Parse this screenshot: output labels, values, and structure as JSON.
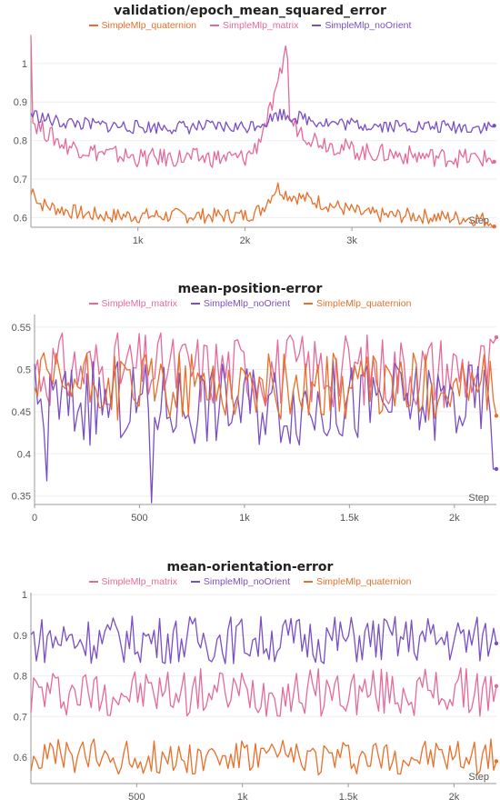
{
  "colors": {
    "SimpleMlp_quaternion": "#e8702a",
    "SimpleMlp_matrix": "#e56a9c",
    "SimpleMlp_noOrient": "#7b4fc4"
  },
  "chart_data": [
    {
      "type": "line",
      "title": "validation/epoch_mean_squared_error",
      "xlabel": "Step",
      "legend": [
        "SimpleMlp_quaternion",
        "SimpleMlp_matrix",
        "SimpleMlp_noOrient"
      ],
      "xlim": [
        0,
        4350
      ],
      "ylim": [
        0.575,
        1.075
      ],
      "xticks": [
        {
          "v": 1000,
          "label": "1k"
        },
        {
          "v": 2000,
          "label": "2k"
        },
        {
          "v": 3000,
          "label": "3k"
        }
      ],
      "yticks": [
        {
          "v": 0.6,
          "label": "0.6"
        },
        {
          "v": 0.7,
          "label": "0.7"
        },
        {
          "v": 0.8,
          "label": "0.8"
        },
        {
          "v": 0.9,
          "label": "0.9"
        },
        {
          "v": 1.0,
          "label": "1"
        }
      ],
      "series": [
        {
          "name": "SimpleMlp_quaternion",
          "points": [
            [
              0,
              0.66
            ],
            [
              30,
              0.68
            ],
            [
              60,
              0.64
            ],
            [
              150,
              0.63
            ],
            [
              300,
              0.62
            ],
            [
              500,
              0.61
            ],
            [
              700,
              0.605
            ],
            [
              1000,
              0.605
            ],
            [
              1500,
              0.605
            ],
            [
              2000,
              0.605
            ],
            [
              2150,
              0.62
            ],
            [
              2300,
              0.68
            ],
            [
              2400,
              0.66
            ],
            [
              2700,
              0.64
            ],
            [
              2900,
              0.625
            ],
            [
              3100,
              0.61
            ],
            [
              3300,
              0.605
            ],
            [
              3600,
              0.605
            ],
            [
              3900,
              0.6
            ],
            [
              4200,
              0.598
            ],
            [
              4330,
              0.585
            ]
          ],
          "noise": 0.02
        },
        {
          "name": "SimpleMlp_matrix",
          "points": [
            [
              0,
              1.07
            ],
            [
              15,
              0.85
            ],
            [
              100,
              0.83
            ],
            [
              300,
              0.79
            ],
            [
              600,
              0.77
            ],
            [
              1000,
              0.755
            ],
            [
              1500,
              0.755
            ],
            [
              2000,
              0.755
            ],
            [
              2100,
              0.78
            ],
            [
              2300,
              0.92
            ],
            [
              2390,
              1.065
            ],
            [
              2420,
              0.85
            ],
            [
              2600,
              0.81
            ],
            [
              2800,
              0.79
            ],
            [
              3100,
              0.77
            ],
            [
              3600,
              0.76
            ],
            [
              4000,
              0.755
            ],
            [
              4330,
              0.752
            ]
          ],
          "noise": 0.025
        },
        {
          "name": "SimpleMlp_noOrient",
          "points": [
            [
              0,
              0.87
            ],
            [
              200,
              0.85
            ],
            [
              600,
              0.84
            ],
            [
              1000,
              0.835
            ],
            [
              1500,
              0.835
            ],
            [
              2000,
              0.835
            ],
            [
              2200,
              0.85
            ],
            [
              2320,
              0.87
            ],
            [
              2500,
              0.86
            ],
            [
              2800,
              0.845
            ],
            [
              3200,
              0.84
            ],
            [
              3800,
              0.835
            ],
            [
              4330,
              0.835
            ]
          ],
          "noise": 0.018
        }
      ]
    },
    {
      "type": "line",
      "title": "mean-position-error",
      "xlabel": "Step",
      "legend": [
        "SimpleMlp_matrix",
        "SimpleMlp_noOrient",
        "SimpleMlp_quaternion"
      ],
      "xlim": [
        0,
        2200
      ],
      "ylim": [
        0.34,
        0.565
      ],
      "xticks": [
        {
          "v": 0,
          "label": "0"
        },
        {
          "v": 500,
          "label": "500"
        },
        {
          "v": 1000,
          "label": "1k"
        },
        {
          "v": 1500,
          "label": "1.5k"
        },
        {
          "v": 2000,
          "label": "2k"
        }
      ],
      "yticks": [
        {
          "v": 0.35,
          "label": "0.35"
        },
        {
          "v": 0.4,
          "label": "0.4"
        },
        {
          "v": 0.45,
          "label": "0.45"
        },
        {
          "v": 0.5,
          "label": "0.5"
        },
        {
          "v": 0.55,
          "label": "0.55"
        }
      ],
      "series": [
        {
          "name": "SimpleMlp_matrix",
          "points": [
            [
              0,
              0.5
            ],
            [
              2200,
              0.5
            ],
            [
              2180,
              0.538
            ]
          ],
          "noise": 0.045,
          "end": 0.538
        },
        {
          "name": "SimpleMlp_noOrient",
          "points": [
            [
              0,
              0.46
            ],
            [
              2200,
              0.46
            ]
          ],
          "noise": 0.05,
          "end": 0.382,
          "dip": [
            [
              560,
              0.342
            ],
            [
              60,
              0.368
            ],
            [
              2190,
              0.382
            ]
          ]
        },
        {
          "name": "SimpleMlp_quaternion",
          "points": [
            [
              0,
              0.48
            ],
            [
              2200,
              0.48
            ]
          ],
          "noise": 0.04,
          "end": 0.445
        }
      ]
    },
    {
      "type": "line",
      "title": "mean-orientation-error",
      "xlabel": "Step",
      "legend": [
        "SimpleMlp_matrix",
        "SimpleMlp_noOrient",
        "SimpleMlp_quaternion"
      ],
      "xlim": [
        0,
        2200
      ],
      "ylim": [
        0.535,
        1.005
      ],
      "xticks": [
        {
          "v": 500,
          "label": "500"
        },
        {
          "v": 1000,
          "label": "1k"
        },
        {
          "v": 1500,
          "label": "1.5k"
        },
        {
          "v": 2000,
          "label": "2k"
        }
      ],
      "yticks": [
        {
          "v": 0.6,
          "label": "0.6"
        },
        {
          "v": 0.7,
          "label": "0.7"
        },
        {
          "v": 0.8,
          "label": "0.8"
        },
        {
          "v": 0.9,
          "label": "0.9"
        },
        {
          "v": 1.0,
          "label": "1"
        }
      ],
      "series": [
        {
          "name": "SimpleMlp_matrix",
          "points": [
            [
              0,
              0.76
            ],
            [
              2200,
              0.76
            ]
          ],
          "noise": 0.06,
          "end": 0.775
        },
        {
          "name": "SimpleMlp_noOrient",
          "points": [
            [
              0,
              0.89
            ],
            [
              2200,
              0.89
            ]
          ],
          "noise": 0.06,
          "end": 0.88
        },
        {
          "name": "SimpleMlp_quaternion",
          "points": [
            [
              0,
              0.6
            ],
            [
              2200,
              0.6
            ]
          ],
          "noise": 0.045,
          "end": 0.59
        }
      ]
    }
  ]
}
